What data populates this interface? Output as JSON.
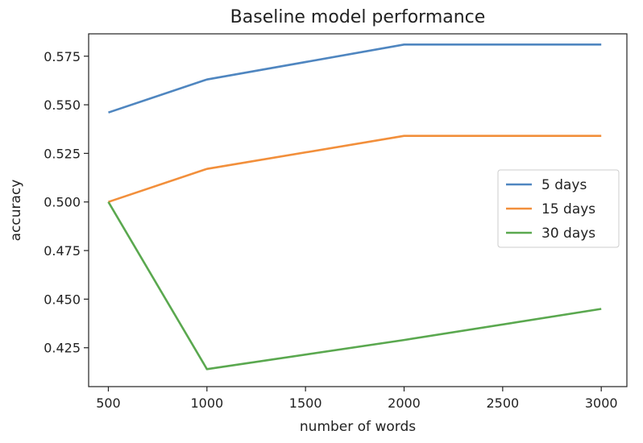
{
  "chart_data": {
    "type": "line",
    "title": "Baseline model performance",
    "xlabel": "number of words",
    "ylabel": "accuracy",
    "x": [
      500,
      1000,
      2000,
      3000
    ],
    "xlim": [
      400,
      3130
    ],
    "ylim": [
      0.405,
      0.5865
    ],
    "xticks": [
      500,
      1000,
      1500,
      2000,
      2500,
      3000
    ],
    "xtick_labels": [
      "500",
      "1000",
      "1500",
      "2000",
      "2500",
      "3000"
    ],
    "yticks": [
      0.425,
      0.45,
      0.475,
      0.5,
      0.525,
      0.55,
      0.575
    ],
    "ytick_labels": [
      "0.425",
      "0.450",
      "0.475",
      "0.500",
      "0.525",
      "0.550",
      "0.575"
    ],
    "grid": false,
    "legend_position": "center-right",
    "series": [
      {
        "name": "5 days",
        "color": "#4f86c0",
        "values": [
          0.546,
          0.563,
          0.581,
          0.581
        ]
      },
      {
        "name": "15 days",
        "color": "#f28f3b",
        "values": [
          0.5,
          0.517,
          0.534,
          0.534
        ]
      },
      {
        "name": "30 days",
        "color": "#5aa84f",
        "values": [
          0.5,
          0.414,
          0.429,
          0.445
        ]
      }
    ]
  }
}
